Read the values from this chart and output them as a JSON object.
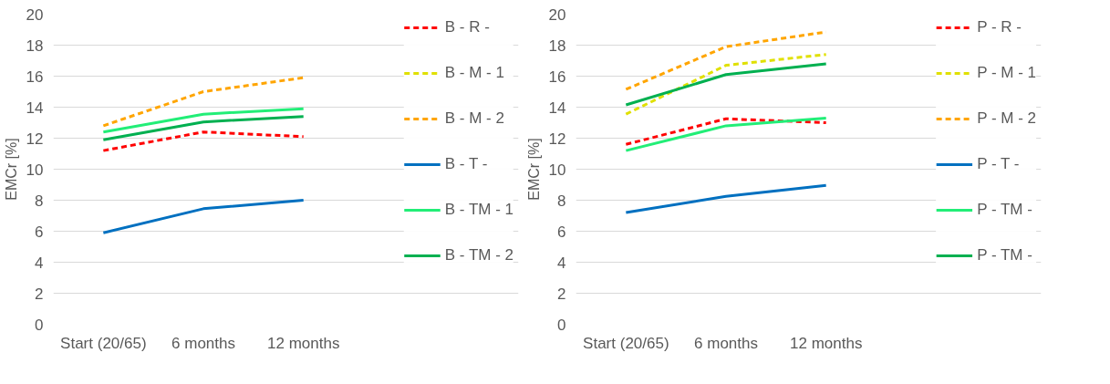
{
  "chart_data": [
    {
      "type": "line",
      "ylabel": "EMCr [%]",
      "categories": [
        "Start (20/65)",
        "6 months",
        "12 months"
      ],
      "ylim": [
        0,
        20
      ],
      "yticks": [
        0,
        2,
        4,
        6,
        8,
        10,
        12,
        14,
        16,
        18,
        20
      ],
      "grid": "y",
      "legend": "right",
      "marker": "none",
      "series": [
        {
          "name": "B - R -",
          "color": "#ff0000",
          "line_style": "dashed",
          "values": [
            11.2,
            12.4,
            12.1
          ]
        },
        {
          "name": "B - M - 1",
          "color": "#e0e000",
          "line_style": "dashed",
          "values": [
            null,
            null,
            null
          ]
        },
        {
          "name": "B - M - 2",
          "color": "#ffa500",
          "line_style": "dashed",
          "values": [
            12.8,
            15.0,
            15.9
          ]
        },
        {
          "name": "B - T -",
          "color": "#0070c0",
          "line_style": "solid",
          "values": [
            5.9,
            7.45,
            8.0
          ]
        },
        {
          "name": "B - TM - 1",
          "color": "#22ee77",
          "line_style": "solid",
          "values": [
            12.4,
            13.55,
            13.9
          ]
        },
        {
          "name": "B - TM - 2",
          "color": "#00b050",
          "line_style": "solid",
          "values": [
            11.9,
            13.05,
            13.4
          ]
        }
      ]
    },
    {
      "type": "line",
      "ylabel": "EMCr [%]",
      "categories": [
        "Start (20/65)",
        "6 months",
        "12 months"
      ],
      "ylim": [
        0,
        20
      ],
      "yticks": [
        0,
        2,
        4,
        6,
        8,
        10,
        12,
        14,
        16,
        18,
        20
      ],
      "grid": "y",
      "legend": "right",
      "marker": "none",
      "series": [
        {
          "name": "P - R -",
          "color": "#ff0000",
          "line_style": "dashed",
          "values": [
            11.6,
            13.25,
            13.0
          ]
        },
        {
          "name": "P - M - 1",
          "color": "#e0e000",
          "line_style": "dashed",
          "values": [
            13.55,
            16.7,
            17.4
          ]
        },
        {
          "name": "P - M - 2",
          "color": "#ffa500",
          "line_style": "dashed",
          "values": [
            15.15,
            17.9,
            18.85
          ]
        },
        {
          "name": "P - T -",
          "color": "#0070c0",
          "line_style": "solid",
          "values": [
            7.2,
            8.25,
            8.95
          ]
        },
        {
          "name": "P - TM -",
          "color": "#22ee77",
          "line_style": "solid",
          "values": [
            11.2,
            12.8,
            13.3
          ]
        },
        {
          "name": "P - TM -",
          "color": "#00b050",
          "line_style": "solid",
          "values": [
            14.15,
            16.1,
            16.8
          ]
        }
      ]
    }
  ]
}
